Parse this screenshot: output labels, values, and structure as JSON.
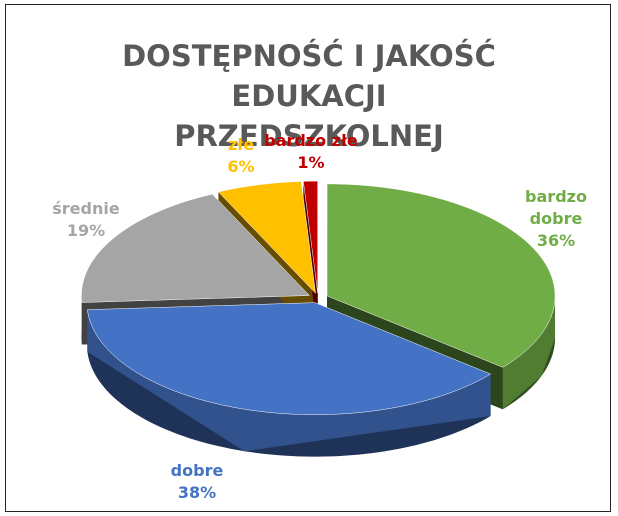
{
  "chart_data": {
    "type": "pie",
    "title": "DOSTĘPNOŚĆ I JAKOŚĆ EDUKACJI PRZEDSZKOLNEJ",
    "categories": [
      "bardzo dobre",
      "dobre",
      "średnie",
      "złe",
      "bardzo złe"
    ],
    "values": [
      36,
      38,
      19,
      6,
      1
    ],
    "value_labels": [
      "36%",
      "38%",
      "19%",
      "6%",
      "1%"
    ],
    "colors": [
      "#70ad47",
      "#4472c4",
      "#a5a5a5",
      "#ffc000",
      "#c00000"
    ]
  }
}
